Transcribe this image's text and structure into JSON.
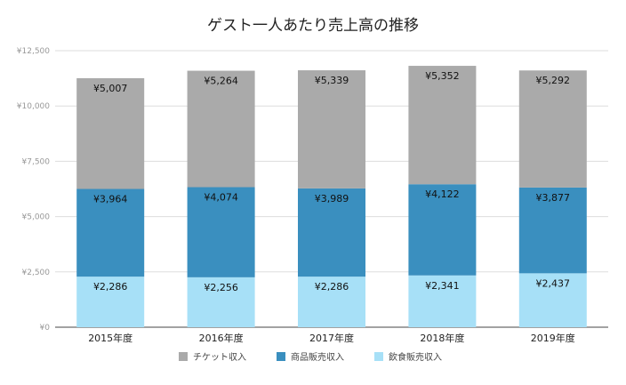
{
  "chart_data": {
    "type": "bar",
    "stacked": true,
    "title": "ゲスト一人あたり売上高の推移",
    "categories": [
      "2015年度",
      "2016年度",
      "2017年度",
      "2018年度",
      "2019年度"
    ],
    "series": [
      {
        "name": "飲食販売収入",
        "color": "#a7e0f7",
        "values": [
          2286,
          2256,
          2286,
          2341,
          2437
        ],
        "labels": [
          "¥2,286",
          "¥2,256",
          "¥2,286",
          "¥2,341",
          "¥2,437"
        ]
      },
      {
        "name": "商品販売収入",
        "color": "#3a8fbf",
        "values": [
          3964,
          4074,
          3989,
          4122,
          3877
        ],
        "labels": [
          "¥3,964",
          "¥4,074",
          "¥3,989",
          "¥4,122",
          "¥3,877"
        ]
      },
      {
        "name": "チケット収入",
        "color": "#aaaaaa",
        "values": [
          5007,
          5264,
          5339,
          5352,
          5292
        ],
        "labels": [
          "¥5,007",
          "¥5,264",
          "¥5,339",
          "¥5,352",
          "¥5,292"
        ]
      }
    ],
    "legend_order": [
      "チケット収入",
      "商品販売収入",
      "飲食販売収入"
    ],
    "ylim": [
      0,
      12500
    ],
    "yticks": [
      0,
      2500,
      5000,
      7500,
      10000,
      12500
    ],
    "ytick_labels": [
      "¥0",
      "¥2,500",
      "¥5,000",
      "¥7,500",
      "¥10,000",
      "¥12,500"
    ],
    "grid": true,
    "legend_position": "bottom"
  }
}
